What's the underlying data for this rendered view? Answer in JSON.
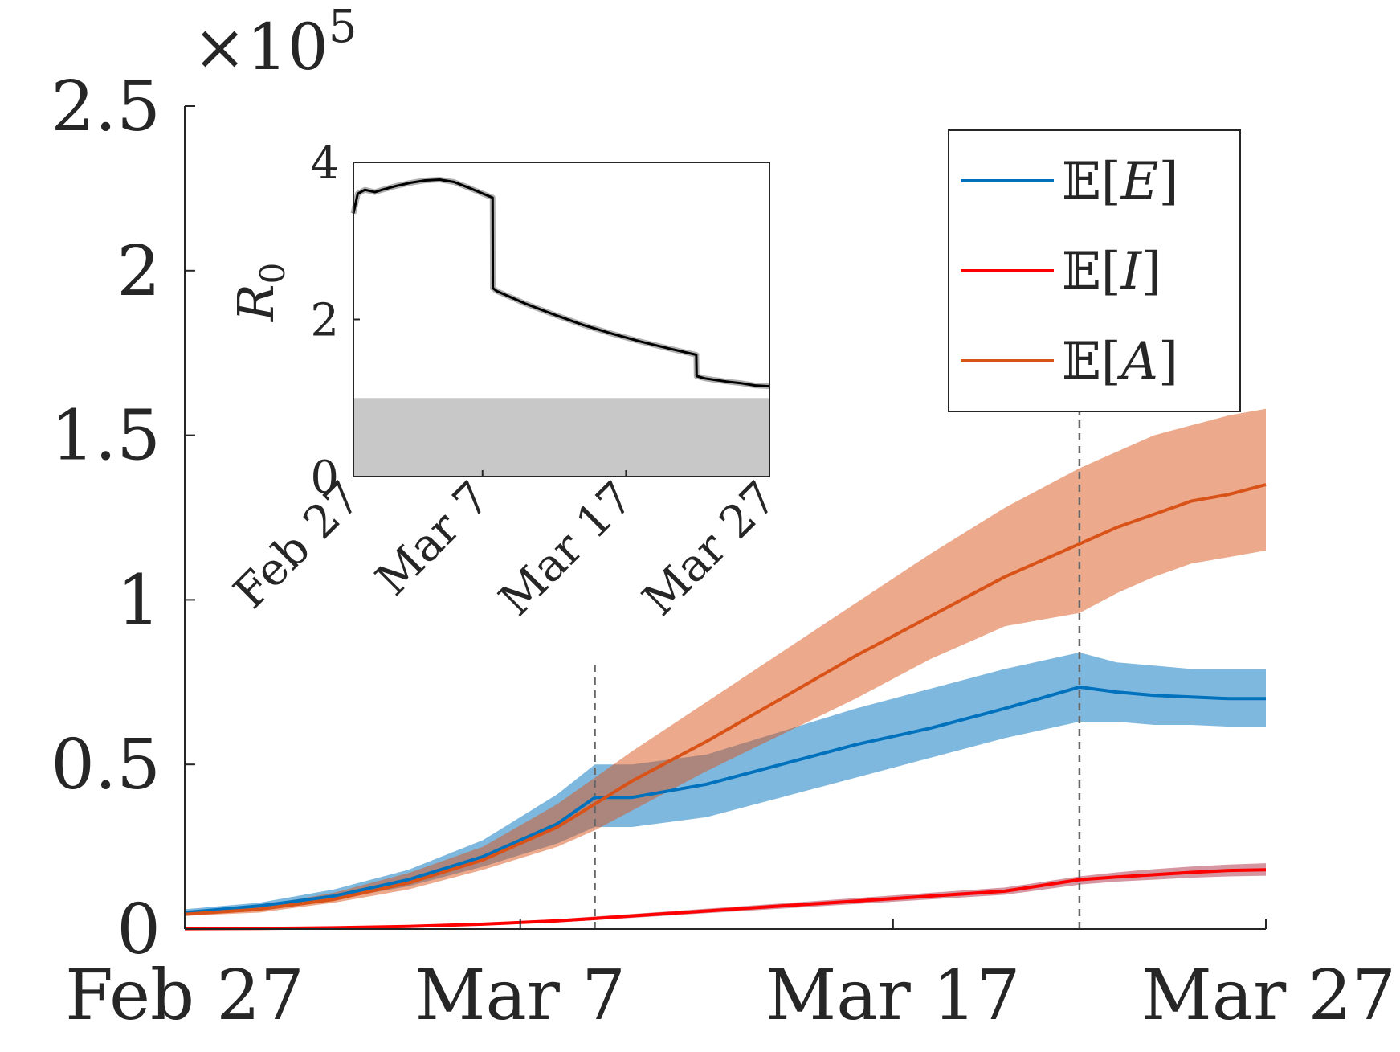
{
  "chart_data": [
    {
      "type": "line",
      "title": "",
      "xlabel": "",
      "ylabel": "",
      "y_multiplier_label": "×10",
      "y_multiplier_exponent": "5",
      "x_ticks": [
        "Feb 27",
        "Mar 7",
        "Mar 17",
        "Mar 27"
      ],
      "x_tick_days": [
        0,
        9,
        19,
        29
      ],
      "xlim_days": [
        0,
        29
      ],
      "y_ticks": [
        "0",
        "0.5",
        "1",
        "1.5",
        "2",
        "2.5"
      ],
      "y_tick_values": [
        0,
        0.5,
        1,
        1.5,
        2,
        2.5
      ],
      "ylim": [
        0,
        2.5
      ],
      "vlines_days": [
        11,
        24
      ],
      "grid": false,
      "legend_position": "top-right",
      "series": [
        {
          "name": "E[E]",
          "legend_prefix": "𝔼[",
          "legend_var": "E",
          "legend_suffix": "]",
          "color": "#0072BD",
          "band_color": "#0072BD",
          "band_opacity": 0.5,
          "x": [
            0,
            2,
            4,
            6,
            8,
            10,
            11,
            12,
            14,
            16,
            18,
            20,
            22,
            24,
            25,
            26,
            27,
            28,
            29
          ],
          "values": [
            0.05,
            0.07,
            0.1,
            0.15,
            0.22,
            0.32,
            0.4,
            0.4,
            0.44,
            0.5,
            0.56,
            0.61,
            0.67,
            0.735,
            0.72,
            0.71,
            0.705,
            0.7,
            0.7
          ],
          "upper": [
            0.06,
            0.08,
            0.12,
            0.18,
            0.27,
            0.41,
            0.5,
            0.5,
            0.53,
            0.6,
            0.67,
            0.73,
            0.79,
            0.84,
            0.81,
            0.8,
            0.79,
            0.79,
            0.79
          ],
          "lower": [
            0.04,
            0.06,
            0.09,
            0.13,
            0.19,
            0.26,
            0.31,
            0.31,
            0.34,
            0.4,
            0.46,
            0.52,
            0.58,
            0.63,
            0.63,
            0.62,
            0.62,
            0.615,
            0.615
          ]
        },
        {
          "name": "E[I]",
          "legend_prefix": "𝔼[",
          "legend_var": "I",
          "legend_suffix": "]",
          "color": "#FF0000",
          "band_color": "#A2142F",
          "band_opacity": 0.45,
          "x": [
            0,
            2,
            4,
            6,
            8,
            10,
            11,
            12,
            14,
            16,
            18,
            20,
            22,
            24,
            25,
            26,
            27,
            28,
            29
          ],
          "values": [
            0.001,
            0.002,
            0.004,
            0.008,
            0.015,
            0.025,
            0.032,
            0.04,
            0.055,
            0.07,
            0.085,
            0.1,
            0.115,
            0.15,
            0.158,
            0.165,
            0.172,
            0.178,
            0.18
          ],
          "upper": [
            0.002,
            0.003,
            0.006,
            0.011,
            0.019,
            0.03,
            0.038,
            0.046,
            0.062,
            0.078,
            0.094,
            0.11,
            0.126,
            0.16,
            0.172,
            0.182,
            0.19,
            0.196,
            0.2
          ],
          "lower": [
            0.0005,
            0.001,
            0.003,
            0.006,
            0.012,
            0.02,
            0.027,
            0.034,
            0.048,
            0.062,
            0.076,
            0.09,
            0.104,
            0.135,
            0.144,
            0.15,
            0.156,
            0.16,
            0.162
          ]
        },
        {
          "name": "E[A]",
          "legend_prefix": "𝔼[",
          "legend_var": "A",
          "legend_suffix": "]",
          "color": "#D95319",
          "band_color": "#D95319",
          "band_opacity": 0.5,
          "x": [
            0,
            2,
            4,
            6,
            8,
            10,
            11,
            12,
            14,
            16,
            18,
            20,
            22,
            24,
            25,
            26,
            27,
            28,
            29
          ],
          "values": [
            0.045,
            0.06,
            0.09,
            0.14,
            0.21,
            0.31,
            0.38,
            0.45,
            0.57,
            0.7,
            0.83,
            0.95,
            1.07,
            1.17,
            1.22,
            1.26,
            1.3,
            1.32,
            1.35
          ],
          "upper": [
            0.05,
            0.07,
            0.11,
            0.17,
            0.25,
            0.38,
            0.46,
            0.54,
            0.69,
            0.84,
            0.99,
            1.14,
            1.28,
            1.4,
            1.45,
            1.5,
            1.53,
            1.56,
            1.58
          ],
          "lower": [
            0.04,
            0.05,
            0.08,
            0.12,
            0.18,
            0.25,
            0.3,
            0.36,
            0.48,
            0.59,
            0.7,
            0.82,
            0.92,
            0.96,
            1.02,
            1.07,
            1.11,
            1.13,
            1.15
          ]
        }
      ]
    },
    {
      "type": "line",
      "title": "",
      "xlabel": "",
      "ylabel": "R",
      "ylabel_subscript": "0",
      "x_ticks": [
        "Feb 27",
        "Mar 7",
        "Mar 17",
        "Mar 27"
      ],
      "x_tick_days": [
        0,
        9,
        19,
        29
      ],
      "xlim_days": [
        0,
        29
      ],
      "y_ticks": [
        "0",
        "2",
        "4"
      ],
      "y_tick_values": [
        0,
        2,
        4
      ],
      "ylim": [
        0,
        4
      ],
      "threshold_band": [
        0,
        1
      ],
      "threshold_color": "#C8C8C8",
      "grid": false,
      "series": [
        {
          "name": "R0",
          "color": "#000000",
          "x": [
            0,
            0.3,
            0.8,
            1.5,
            2,
            3,
            4,
            5,
            6,
            7,
            8,
            9.7,
            9.72,
            10,
            11,
            12,
            14,
            16,
            18,
            20,
            22,
            23.9,
            23.92,
            24.5,
            26,
            27,
            28,
            29
          ],
          "values": [
            3.35,
            3.6,
            3.65,
            3.62,
            3.65,
            3.7,
            3.74,
            3.77,
            3.78,
            3.75,
            3.68,
            3.55,
            2.4,
            2.36,
            2.28,
            2.2,
            2.06,
            1.93,
            1.82,
            1.72,
            1.63,
            1.55,
            1.28,
            1.25,
            1.21,
            1.19,
            1.16,
            1.15
          ]
        }
      ]
    }
  ]
}
